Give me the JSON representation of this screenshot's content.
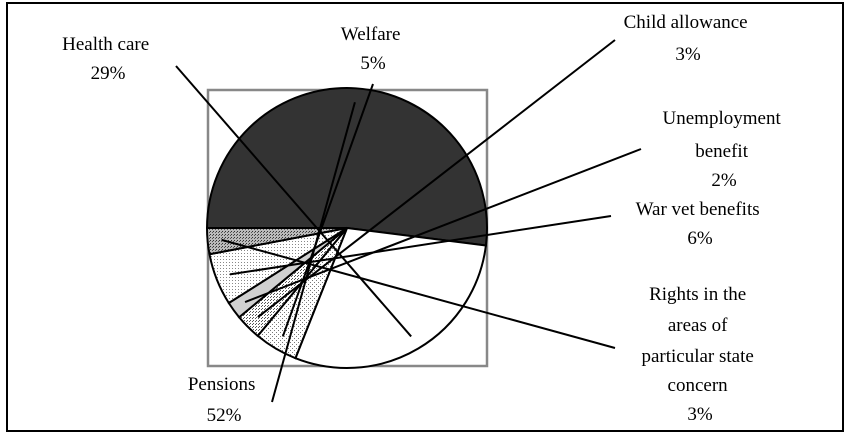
{
  "chart_data": {
    "type": "pie",
    "title": "",
    "start_angle_deg": 180,
    "direction": "clockwise",
    "slices": [
      {
        "label": "Pensions",
        "value": 52,
        "display": "52%",
        "fill": "#333333",
        "pattern": "solid"
      },
      {
        "label": "Health care",
        "value": 29,
        "display": "29%",
        "fill": "#ffffff",
        "pattern": "none"
      },
      {
        "label": "Welfare",
        "value": 5,
        "display": "5%",
        "fill": "#ffffff",
        "pattern": "dots-sparse"
      },
      {
        "label": "Child allowance",
        "value": 3,
        "display": "3%",
        "fill": "#ffffff",
        "pattern": "dots-dense"
      },
      {
        "label": "Unemployment benefit",
        "value": 2,
        "display": "2%",
        "fill": "#d0d0d0",
        "pattern": "solid"
      },
      {
        "label": "War vet benefits",
        "value": 6,
        "display": "6%",
        "fill": "#ffffff",
        "pattern": "dots-fine"
      },
      {
        "label": "Rights in the areas of particular state concern",
        "value": 3,
        "display": "3%",
        "fill": "#aaaaaa",
        "pattern": "dots-dark"
      }
    ],
    "plot_area_border": "#888888"
  },
  "labels": [
    {
      "lines": [
        "Health care",
        "29%"
      ]
    },
    {
      "lines": [
        "Welfare",
        "5%"
      ]
    },
    {
      "lines": [
        "Child allowance",
        "3%"
      ]
    },
    {
      "lines": [
        "Unemployment",
        "benefit",
        "2%"
      ]
    },
    {
      "lines": [
        "War vet benefits",
        "6%"
      ]
    },
    {
      "lines": [
        "Rights in the",
        "areas of",
        "particular state",
        "concern",
        "3%"
      ]
    },
    {
      "lines": [
        "Pensions",
        "52%"
      ]
    }
  ]
}
